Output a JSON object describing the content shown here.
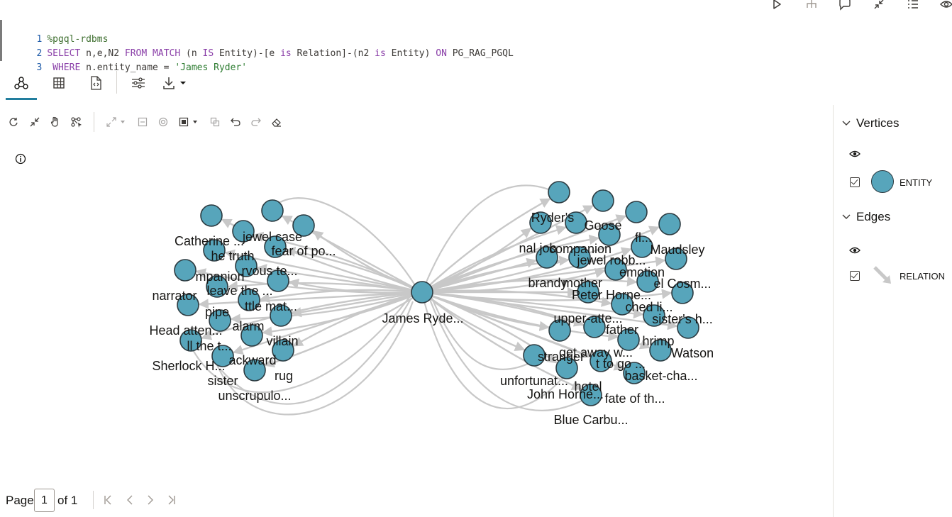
{
  "editor": {
    "lines": [
      {
        "num": "1",
        "text": "%pgql-rdbms"
      },
      {
        "num": "2",
        "text": "SELECT n,e,N2 FROM MATCH (n IS Entity)-[e is Relation]-(n2 is Entity) ON PG_RAG_PGQL"
      },
      {
        "num": "3",
        "text": " WHERE n.entity_name = 'James Ryder'"
      }
    ]
  },
  "toolbar_icons": [
    "run-icon",
    "hierarchy-icon",
    "comment-icon",
    "collapse-icon",
    "list-icon",
    "eye-icon"
  ],
  "view_tabs": [
    {
      "name": "graph-view-tab",
      "icon": "graph-icon",
      "active": true
    },
    {
      "name": "table-view-tab",
      "icon": "table-icon",
      "active": false
    },
    {
      "name": "json-view-tab",
      "icon": "code-file-icon",
      "active": false
    },
    {
      "name": "settings-tab",
      "icon": "sliders-icon",
      "active": false
    },
    {
      "name": "download-tab",
      "icon": "download-icon",
      "active": false
    }
  ],
  "legend": {
    "vertices_title": "Vertices",
    "entity_label": "ENTITY",
    "edges_title": "Edges",
    "relation_label": "RELATION",
    "node_color": "#57a5bb"
  },
  "pager": {
    "page_label": "Page",
    "page_value": "1",
    "of_label": "of 1"
  },
  "graph": {
    "center_label": "James Ryde...",
    "left_labels": [
      "Catherine ...",
      "jewel case",
      "he truth",
      "fear of po...",
      "mpanion",
      "rvous te...",
      "narrator",
      "leave the ...",
      "pipe",
      "ttle mat...",
      "Head atten...",
      "alarm",
      "ll the t...",
      "villain",
      "Sherlock H...",
      "ackward",
      "sister",
      "rug",
      "unscrupulo..."
    ],
    "right_labels": [
      "Ryder's",
      "Goose",
      "nal job",
      "companion",
      "fl...",
      "Maudsley",
      "jewel robb...",
      "brandy",
      "emotion",
      "mother",
      "el Cosm...",
      "Peter Horne...",
      "ched li...",
      "upper-atte...",
      "sister's h...",
      "father",
      "hrimp",
      "get away w...",
      "Watson",
      "stranger",
      "t to go ...",
      "basket-cha...",
      "hotel",
      "unfortunat...",
      "John Horne...",
      "fate of th...",
      "Blue Carbu..."
    ]
  }
}
